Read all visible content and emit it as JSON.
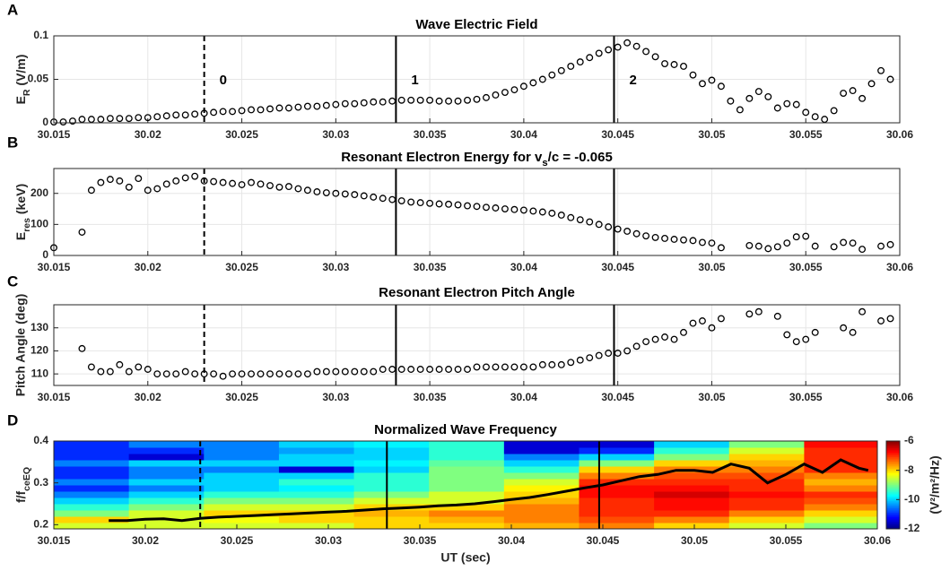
{
  "chart_data": [
    {
      "type": "scatter",
      "panel_label": "A",
      "title": "Wave Electric Field",
      "ylabel": {
        "pre": "E",
        "sub": "R",
        "post": " (V/m)"
      },
      "x": [
        30.015,
        30.0155,
        30.016,
        30.0165,
        30.017,
        30.0175,
        30.018,
        30.0185,
        30.019,
        30.0195,
        30.02,
        30.0205,
        30.021,
        30.0215,
        30.022,
        30.0225,
        30.023,
        30.0235,
        30.024,
        30.0245,
        30.025,
        30.0255,
        30.026,
        30.0265,
        30.027,
        30.0275,
        30.028,
        30.0285,
        30.029,
        30.0295,
        30.03,
        30.0305,
        30.031,
        30.0315,
        30.032,
        30.0325,
        30.033,
        30.0335,
        30.034,
        30.0345,
        30.035,
        30.0355,
        30.036,
        30.0365,
        30.037,
        30.0375,
        30.038,
        30.0385,
        30.039,
        30.0395,
        30.04,
        30.0405,
        30.041,
        30.0415,
        30.042,
        30.0425,
        30.043,
        30.0435,
        30.044,
        30.0445,
        30.045,
        30.0455,
        30.046,
        30.0465,
        30.047,
        30.0475,
        30.048,
        30.0485,
        30.049,
        30.0495,
        30.05,
        30.0505,
        30.051,
        30.0515,
        30.052,
        30.0525,
        30.053,
        30.0535,
        30.054,
        30.0545,
        30.055,
        30.0555,
        30.056,
        30.0565,
        30.057,
        30.0575,
        30.058,
        30.0585,
        30.059,
        30.0595
      ],
      "values": [
        0.001,
        0.001,
        0.002,
        0.004,
        0.004,
        0.004,
        0.005,
        0.005,
        0.005,
        0.006,
        0.006,
        0.007,
        0.008,
        0.009,
        0.009,
        0.01,
        0.011,
        0.012,
        0.013,
        0.013,
        0.014,
        0.015,
        0.015,
        0.016,
        0.017,
        0.017,
        0.018,
        0.019,
        0.019,
        0.02,
        0.021,
        0.022,
        0.022,
        0.023,
        0.024,
        0.024,
        0.025,
        0.026,
        0.026,
        0.026,
        0.026,
        0.025,
        0.025,
        0.025,
        0.026,
        0.027,
        0.029,
        0.032,
        0.035,
        0.038,
        0.042,
        0.046,
        0.05,
        0.055,
        0.06,
        0.065,
        0.07,
        0.075,
        0.08,
        0.084,
        0.087,
        0.092,
        0.088,
        0.082,
        0.076,
        0.068,
        0.067,
        0.065,
        0.055,
        0.045,
        0.049,
        0.042,
        0.025,
        0.015,
        0.028,
        0.036,
        0.03,
        0.017,
        0.022,
        0.021,
        0.012,
        0.007,
        0.004,
        0.014,
        0.034,
        0.037,
        0.028,
        0.045,
        0.06,
        0.05
      ],
      "xlim": [
        30.015,
        30.06
      ],
      "xticks": [
        30.015,
        30.02,
        30.025,
        30.03,
        30.035,
        30.04,
        30.045,
        30.05,
        30.055,
        30.06
      ],
      "ylim": [
        0,
        0.1
      ],
      "yticks": [
        0,
        0.05,
        0.1
      ],
      "grid": true
    },
    {
      "type": "scatter",
      "panel_label": "B",
      "title": {
        "pre": "Resonant Electron Energy for v",
        "sub": "s",
        "post": "/c = -0.065"
      },
      "ylabel": {
        "pre": "E",
        "sub": "res",
        "post": " (keV)"
      },
      "x": [
        30.015,
        30.0155,
        30.016,
        30.0165,
        30.017,
        30.0175,
        30.018,
        30.0185,
        30.019,
        30.0195,
        30.02,
        30.0205,
        30.021,
        30.0215,
        30.022,
        30.0225,
        30.023,
        30.0235,
        30.024,
        30.0245,
        30.025,
        30.0255,
        30.026,
        30.0265,
        30.027,
        30.0275,
        30.028,
        30.0285,
        30.029,
        30.0295,
        30.03,
        30.0305,
        30.031,
        30.0315,
        30.032,
        30.0325,
        30.033,
        30.0335,
        30.034,
        30.0345,
        30.035,
        30.0355,
        30.036,
        30.0365,
        30.037,
        30.0375,
        30.038,
        30.0385,
        30.039,
        30.0395,
        30.04,
        30.0405,
        30.041,
        30.0415,
        30.042,
        30.0425,
        30.043,
        30.0435,
        30.044,
        30.0445,
        30.045,
        30.0455,
        30.046,
        30.0465,
        30.047,
        30.0475,
        30.048,
        30.0485,
        30.049,
        30.0495,
        30.05,
        30.0505,
        30.051,
        30.0515,
        30.052,
        30.0525,
        30.053,
        30.0535,
        30.054,
        30.0545,
        30.055,
        30.0555,
        30.056,
        30.0565,
        30.057,
        30.0575,
        30.058,
        30.0585,
        30.059,
        30.0595
      ],
      "values": [
        25,
        null,
        null,
        75,
        210,
        235,
        245,
        240,
        220,
        248,
        210,
        215,
        230,
        240,
        250,
        255,
        240,
        238,
        235,
        232,
        228,
        235,
        230,
        225,
        220,
        222,
        215,
        210,
        205,
        202,
        200,
        198,
        196,
        192,
        188,
        184,
        180,
        176,
        172,
        170,
        168,
        166,
        165,
        163,
        160,
        158,
        155,
        153,
        150,
        148,
        146,
        143,
        140,
        136,
        130,
        122,
        115,
        108,
        100,
        92,
        85,
        78,
        70,
        63,
        58,
        55,
        52,
        50,
        48,
        42,
        40,
        25,
        null,
        null,
        32,
        30,
        22,
        28,
        40,
        60,
        62,
        30,
        null,
        28,
        42,
        40,
        20,
        null,
        30,
        35
      ],
      "xlim": [
        30.015,
        30.06
      ],
      "xticks": [
        30.015,
        30.02,
        30.025,
        30.03,
        30.035,
        30.04,
        30.045,
        30.05,
        30.055,
        30.06
      ],
      "ylim": [
        0,
        280
      ],
      "yticks": [
        0,
        100,
        200
      ],
      "grid": true
    },
    {
      "type": "scatter",
      "panel_label": "C",
      "title": "Resonant Electron Pitch Angle",
      "ylabel": "Pitch Angle (deg)",
      "x": [
        30.015,
        30.0155,
        30.016,
        30.0165,
        30.017,
        30.0175,
        30.018,
        30.0185,
        30.019,
        30.0195,
        30.02,
        30.0205,
        30.021,
        30.0215,
        30.022,
        30.0225,
        30.023,
        30.0235,
        30.024,
        30.0245,
        30.025,
        30.0255,
        30.026,
        30.0265,
        30.027,
        30.0275,
        30.028,
        30.0285,
        30.029,
        30.0295,
        30.03,
        30.0305,
        30.031,
        30.0315,
        30.032,
        30.0325,
        30.033,
        30.0335,
        30.034,
        30.0345,
        30.035,
        30.0355,
        30.036,
        30.0365,
        30.037,
        30.0375,
        30.038,
        30.0385,
        30.039,
        30.0395,
        30.04,
        30.0405,
        30.041,
        30.0415,
        30.042,
        30.0425,
        30.043,
        30.0435,
        30.044,
        30.0445,
        30.045,
        30.0455,
        30.046,
        30.0465,
        30.047,
        30.0475,
        30.048,
        30.0485,
        30.049,
        30.0495,
        30.05,
        30.0505,
        30.051,
        30.0515,
        30.052,
        30.0525,
        30.053,
        30.0535,
        30.054,
        30.0545,
        30.055,
        30.0555,
        30.056,
        30.0565,
        30.057,
        30.0575,
        30.058,
        30.0585,
        30.059,
        30.0595
      ],
      "values": [
        null,
        null,
        null,
        121,
        113,
        111,
        111,
        114,
        111,
        113,
        112,
        110,
        110,
        110,
        111,
        110,
        110,
        110,
        109,
        110,
        110,
        110,
        110,
        110,
        110,
        110,
        110,
        110,
        111,
        111,
        111,
        111,
        111,
        111,
        111,
        112,
        112,
        112,
        112,
        112,
        112,
        112,
        112,
        112,
        112,
        113,
        113,
        113,
        113,
        113,
        113,
        113,
        114,
        114,
        114,
        115,
        116,
        117,
        118,
        119,
        119,
        120,
        122,
        124,
        125,
        126,
        125,
        128,
        132,
        133,
        130,
        134,
        null,
        null,
        136,
        137,
        null,
        135,
        127,
        124,
        125,
        128,
        null,
        null,
        130,
        128,
        137,
        null,
        133,
        134
      ],
      "xlim": [
        30.015,
        30.06
      ],
      "xticks": [
        30.015,
        30.02,
        30.025,
        30.03,
        30.035,
        30.04,
        30.045,
        30.05,
        30.055,
        30.06
      ],
      "ylim": [
        105,
        140
      ],
      "yticks": [
        110,
        120,
        130
      ],
      "grid": true
    },
    {
      "type": "heatmap",
      "panel_label": "D",
      "title": "Normalized Wave Frequency",
      "ylabel": {
        "pre": "f/f",
        "sub": "ceEQ"
      },
      "xlabel": "UT (sec)",
      "x_bins": [
        30.015,
        30.0191,
        30.0232,
        30.0273,
        30.0314,
        30.0355,
        30.0396,
        30.0437,
        30.0478,
        30.0519,
        30.056,
        30.06
      ],
      "y_bins": [
        0.19,
        0.205,
        0.22,
        0.235,
        0.25,
        0.265,
        0.28,
        0.295,
        0.31,
        0.325,
        0.34,
        0.355,
        0.37,
        0.385,
        0.4
      ],
      "z": [
        [
          -8.5,
          -8.5,
          -8.5,
          -8.5,
          -8,
          -8,
          -7.8,
          -7.5,
          -8,
          -8.5,
          -9
        ],
        [
          -8,
          -8.5,
          -8.3,
          -8,
          -8,
          -7.8,
          -7.5,
          -7.2,
          -7.5,
          -8,
          -8.5
        ],
        [
          -9,
          -8.5,
          -8,
          -8,
          -7.8,
          -7.5,
          -7.5,
          -7,
          -7,
          -7.5,
          -8
        ],
        [
          -9.5,
          -9,
          -8.5,
          -8.5,
          -8,
          -8,
          -7.5,
          -7,
          -6.8,
          -7,
          -7.5
        ],
        [
          -10,
          -9.5,
          -9,
          -9,
          -8.5,
          -8.5,
          -7.8,
          -7,
          -6.8,
          -7,
          -7.2
        ],
        [
          -10.5,
          -10,
          -9.5,
          -9.5,
          -9,
          -8.5,
          -8,
          -6.8,
          -6.5,
          -6.8,
          -7
        ],
        [
          -11,
          -10.5,
          -10,
          -9.8,
          -9.5,
          -9,
          -8.2,
          -6.8,
          -6.8,
          -7,
          -7.5
        ],
        [
          -10.5,
          -10,
          -10,
          -9.5,
          -9.5,
          -9,
          -8.5,
          -7,
          -7,
          -7,
          -7.8
        ],
        [
          -11,
          -10.5,
          -10,
          -10,
          -9.5,
          -9,
          -9,
          -7.5,
          -7.2,
          -7.2,
          -7.5
        ],
        [
          -11,
          -10.5,
          -10.5,
          -11.5,
          -10,
          -9,
          -9.5,
          -8,
          -7.5,
          -7.5,
          -7
        ],
        [
          -10.5,
          -10,
          -10,
          -10,
          -9.8,
          -9.2,
          -10,
          -9,
          -8,
          -7.8,
          -7
        ],
        [
          -11,
          -11.5,
          -10.5,
          -10,
          -10,
          -9.5,
          -10.5,
          -10,
          -9,
          -8,
          -7
        ],
        [
          -11,
          -11,
          -10.5,
          -10.3,
          -10,
          -9.5,
          -11.5,
          -11,
          -9.5,
          -8.5,
          -7
        ],
        [
          -11,
          -10.5,
          -10.5,
          -10,
          -9.8,
          -9.5,
          -11.5,
          -11.5,
          -10,
          -9,
          -6.8
        ]
      ],
      "colormap": "jet",
      "clim": [
        -12,
        -6
      ],
      "cticks": [
        -6,
        -8,
        -10,
        -12
      ],
      "clabel": "(V²/m²/Hz)",
      "line": {
        "color": "#000000",
        "x": [
          30.018,
          30.019,
          30.02,
          30.021,
          30.022,
          30.023,
          30.024,
          30.025,
          30.026,
          30.027,
          30.028,
          30.029,
          30.03,
          30.031,
          30.032,
          30.033,
          30.034,
          30.035,
          30.036,
          30.037,
          30.038,
          30.039,
          30.04,
          30.041,
          30.042,
          30.043,
          30.044,
          30.045,
          30.046,
          30.047,
          30.048,
          30.049,
          30.05,
          30.051,
          30.052,
          30.053,
          30.054,
          30.055,
          30.056,
          30.057,
          30.058,
          30.059,
          30.0595
        ],
        "values": [
          0.21,
          0.21,
          0.213,
          0.214,
          0.21,
          0.215,
          0.218,
          0.22,
          0.222,
          0.224,
          0.226,
          0.228,
          0.23,
          0.232,
          0.235,
          0.238,
          0.24,
          0.242,
          0.245,
          0.247,
          0.25,
          0.255,
          0.26,
          0.265,
          0.272,
          0.28,
          0.288,
          0.295,
          0.305,
          0.315,
          0.32,
          0.33,
          0.33,
          0.325,
          0.345,
          0.335,
          0.3,
          0.32,
          0.345,
          0.325,
          0.355,
          0.335,
          0.33
        ]
      },
      "xlim": [
        30.015,
        30.06
      ],
      "xticks": [
        30.015,
        30.02,
        30.025,
        30.03,
        30.035,
        30.04,
        30.045,
        30.05,
        30.055,
        30.06
      ],
      "ylim": [
        0.19,
        0.4
      ],
      "yticks": [
        0.2,
        0.3,
        0.4
      ],
      "grid": false
    }
  ],
  "events": [
    {
      "x": 30.023,
      "style": "dashed",
      "label": "0"
    },
    {
      "x": 30.0332,
      "style": "solid",
      "label": "1"
    },
    {
      "x": 30.0448,
      "style": "solid",
      "label": "2"
    }
  ]
}
